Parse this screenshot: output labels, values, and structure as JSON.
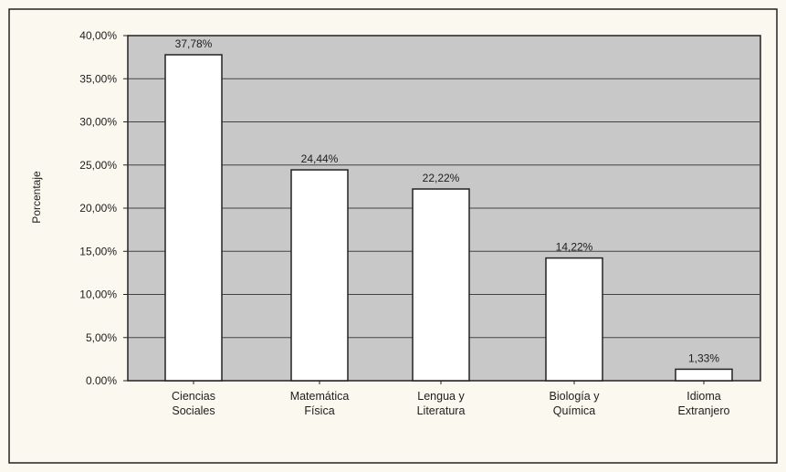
{
  "chart_data": {
    "type": "bar",
    "ylabel": "Porcentaje",
    "ylim": [
      0,
      40
    ],
    "yticks": [
      {
        "value": 0,
        "label": "0.00%"
      },
      {
        "value": 5,
        "label": "5,00%"
      },
      {
        "value": 10,
        "label": "10,00%"
      },
      {
        "value": 15,
        "label": "15,00%"
      },
      {
        "value": 20,
        "label": "20,00%"
      },
      {
        "value": 25,
        "label": "25,00%"
      },
      {
        "value": 30,
        "label": "30,00%"
      },
      {
        "value": 35,
        "label": "35,00%"
      },
      {
        "value": 40,
        "label": "40,00%"
      }
    ],
    "categories": [
      [
        "Ciencias",
        "Sociales"
      ],
      [
        "Matemática",
        "Física"
      ],
      [
        "Lengua y",
        "Literatura"
      ],
      [
        "Biología y",
        "Química"
      ],
      [
        "Idioma",
        "Extranjero"
      ]
    ],
    "values": [
      37.78,
      24.44,
      22.22,
      14.22,
      1.33
    ],
    "data_labels": [
      "37,78%",
      "24,44%",
      "22,22%",
      "14,22%",
      "1,33%"
    ],
    "grid": true,
    "colors": {
      "plot_background": "#c8c8c8",
      "bar_fill": "#ffffff",
      "bar_stroke": "#222222",
      "gridline": "#444444",
      "page_background": "#fbf8ef"
    }
  }
}
